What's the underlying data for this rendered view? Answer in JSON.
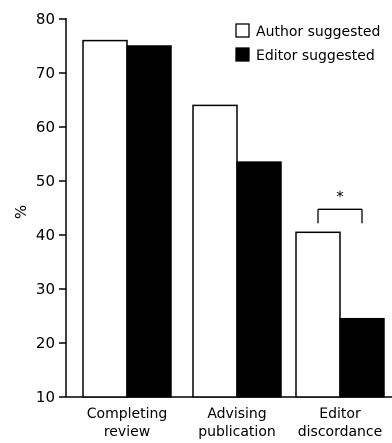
{
  "chart_data": {
    "type": "bar",
    "categories": [
      [
        "Completing",
        "review"
      ],
      [
        "Advising",
        "publication"
      ],
      [
        "Editor",
        "discordance"
      ]
    ],
    "series": [
      {
        "name": "Author suggested",
        "values": [
          76,
          64,
          40.5
        ],
        "color": "#ffffff"
      },
      {
        "name": "Editor suggested",
        "values": [
          75,
          53.5,
          24.5
        ],
        "color": "#000000"
      }
    ],
    "ylabel": "%",
    "ylim": [
      10,
      80
    ],
    "yticks": [
      10,
      20,
      30,
      40,
      50,
      60,
      70,
      80
    ],
    "legend_position": "top-right",
    "grid": false,
    "annotations": [
      {
        "text": "*",
        "category_index": 2,
        "type": "significance-bracket"
      }
    ]
  }
}
